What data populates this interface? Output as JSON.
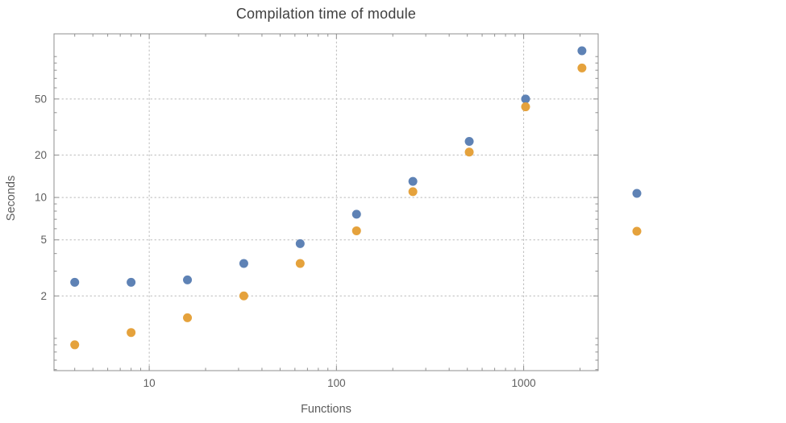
{
  "title": "Compilation time of module",
  "xlabel": "Functions",
  "ylabel": "Seconds",
  "colors": {
    "frame": "#8f8f8f",
    "grid": "#b9b9b9",
    "tick_label": "#5e5e5e",
    "title": "#404040",
    "axis_label": "#5c5c5c",
    "series_blue": "#5e82b5",
    "series_orange": "#e5a23c"
  },
  "chart_data": {
    "type": "scatter",
    "title": "Compilation time of module",
    "xlabel": "Functions",
    "ylabel": "Seconds",
    "x_scale": "log",
    "y_scale": "log",
    "grid": true,
    "grid_style": "dotted",
    "x": [
      4,
      8,
      16,
      32,
      64,
      128,
      256,
      512,
      1024,
      2048
    ],
    "series": [
      {
        "name": "series-1-blue",
        "color": "#5e82b5",
        "values": [
          2.5,
          2.5,
          2.6,
          3.4,
          4.7,
          7.6,
          13,
          25,
          50,
          110
        ]
      },
      {
        "name": "series-2-orange",
        "color": "#e5a23c",
        "values": [
          0.9,
          1.1,
          1.4,
          2.0,
          3.4,
          5.8,
          11,
          21,
          44,
          83
        ]
      }
    ],
    "x_ticks": [
      10,
      100,
      1000
    ],
    "y_ticks": [
      2,
      5,
      10,
      20,
      50
    ],
    "x_range": [
      3.1,
      2500
    ],
    "y_range": [
      0.59,
      145
    ],
    "legend_position": "right",
    "legend_markers": [
      {
        "series": "series-1-blue",
        "color": "#5e82b5",
        "label": ""
      },
      {
        "series": "series-2-orange",
        "color": "#e5a23c",
        "label": ""
      }
    ]
  }
}
